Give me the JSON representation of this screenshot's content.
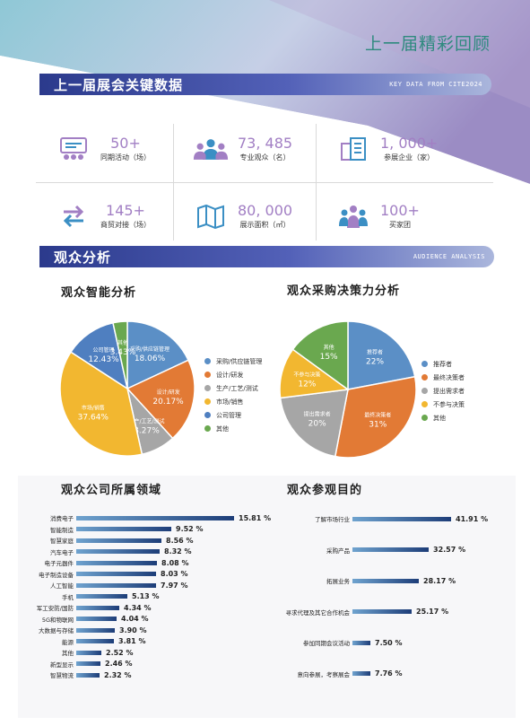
{
  "page_title": "上一届精彩回顾",
  "key_banner": {
    "title": "上一届展会关键数据",
    "subtitle": "KEY DATA FROM CITE2024"
  },
  "stats": [
    {
      "value": "50+",
      "label": "同期活动（场）",
      "icon": "meeting-icon"
    },
    {
      "value": "73, 485",
      "label": "专业观众（名）",
      "icon": "people-icon"
    },
    {
      "value": "1, 000+",
      "label": "参展企业（家）",
      "icon": "building-icon"
    },
    {
      "value": "145+",
      "label": "商贸对接（场）",
      "icon": "exchange-icon"
    },
    {
      "value": "80, 000",
      "label": "展示面积（㎡）",
      "icon": "map-icon"
    },
    {
      "value": "100+",
      "label": "买家团",
      "icon": "group-icon"
    }
  ],
  "audience_banner": {
    "title": "观众分析",
    "subtitle": "AUDIENCE ANALYSIS"
  },
  "sections": {
    "smart": "观众智能分析",
    "decision": "观众采购决策力分析",
    "company": "观众公司所属领域",
    "purpose": "观众参观目的"
  },
  "colors": {
    "blue": "#5b8fc6",
    "orange": "#e27a35",
    "gray": "#a6a6a6",
    "yellow": "#f2b730",
    "green": "#6aa84f",
    "accent": "#a27fc4"
  },
  "chart_data": [
    {
      "type": "pie",
      "title": "观众智能分析",
      "legend_position": "right",
      "slices": [
        {
          "name": "采购/供应链管理",
          "value": 18.06,
          "color": "#5b8fc6",
          "label": "采购/供应链管理",
          "pct": "18.06%"
        },
        {
          "name": "设计/研发",
          "value": 20.17,
          "color": "#e27a35",
          "label": "设计/研发",
          "pct": "20.17%"
        },
        {
          "name": "生产/工艺/测试",
          "value": 8.27,
          "color": "#a6a6a6",
          "label": "生产/工艺/测试",
          "pct": "8.27%"
        },
        {
          "name": "市场/销售",
          "value": 37.64,
          "color": "#f2b730",
          "label": "市场/销售",
          "pct": "37.64%"
        },
        {
          "name": "公司管理",
          "value": 12.43,
          "color": "#4f7fc0",
          "label": "公司管理",
          "pct": "12.43%"
        },
        {
          "name": "其他",
          "value": 3.43,
          "color": "#6aa84f",
          "label": "其他",
          "pct": "3.43%"
        }
      ]
    },
    {
      "type": "pie",
      "title": "观众采购决策力分析",
      "legend_position": "right",
      "slices": [
        {
          "name": "推荐者",
          "value": 22,
          "color": "#5b8fc6",
          "label": "推荐者",
          "pct": "22%"
        },
        {
          "name": "最终决策者",
          "value": 31,
          "color": "#e27a35",
          "label": "最终决策者",
          "pct": "31%"
        },
        {
          "name": "提出需求者",
          "value": 20,
          "color": "#a6a6a6",
          "label": "提出需求者",
          "pct": "20%"
        },
        {
          "name": "不参与决策",
          "value": 12,
          "color": "#f2b730",
          "label": "不参与决策",
          "pct": "12%"
        },
        {
          "name": "其他",
          "value": 15,
          "color": "#6aa84f",
          "label": "其他",
          "pct": "15%"
        }
      ]
    },
    {
      "type": "bar",
      "orientation": "horizontal",
      "title": "观众公司所属领域",
      "categories": [
        "消费电子",
        "智能制造",
        "智慧家庭",
        "汽车电子",
        "电子元器件",
        "电子制造设备",
        "人工智能",
        "手机",
        "军工安防/国防",
        "5G和物联网",
        "大数据与存储",
        "能源",
        "其他",
        "新型显示",
        "智慧物流"
      ],
      "values": [
        15.81,
        9.52,
        8.56,
        8.32,
        8.08,
        8.03,
        7.97,
        5.13,
        4.34,
        4.04,
        3.9,
        3.81,
        2.52,
        2.46,
        2.32
      ],
      "value_labels": [
        "15.81 %",
        "9.52 %",
        "8.56 %",
        "8.32 %",
        "8.08 %",
        "8.03 %",
        "7.97 %",
        "5.13 %",
        "4.34 %",
        "4.04 %",
        "3.90 %",
        "3.81 %",
        "2.52 %",
        "2.46 %",
        "2.32 %"
      ]
    },
    {
      "type": "bar",
      "orientation": "horizontal",
      "title": "观众参观目的",
      "categories": [
        "了解市场行业",
        "采购产品",
        "拓展业务",
        "寻求代理及其它合作机会",
        "参加同期会议活动",
        "意向参展，考察展会"
      ],
      "values": [
        41.91,
        32.57,
        28.17,
        25.17,
        7.5,
        7.76
      ],
      "value_labels": [
        "41.91 %",
        "32.57 %",
        "28.17 %",
        "25.17 %",
        "7.50 %",
        "7.76 %"
      ]
    }
  ]
}
